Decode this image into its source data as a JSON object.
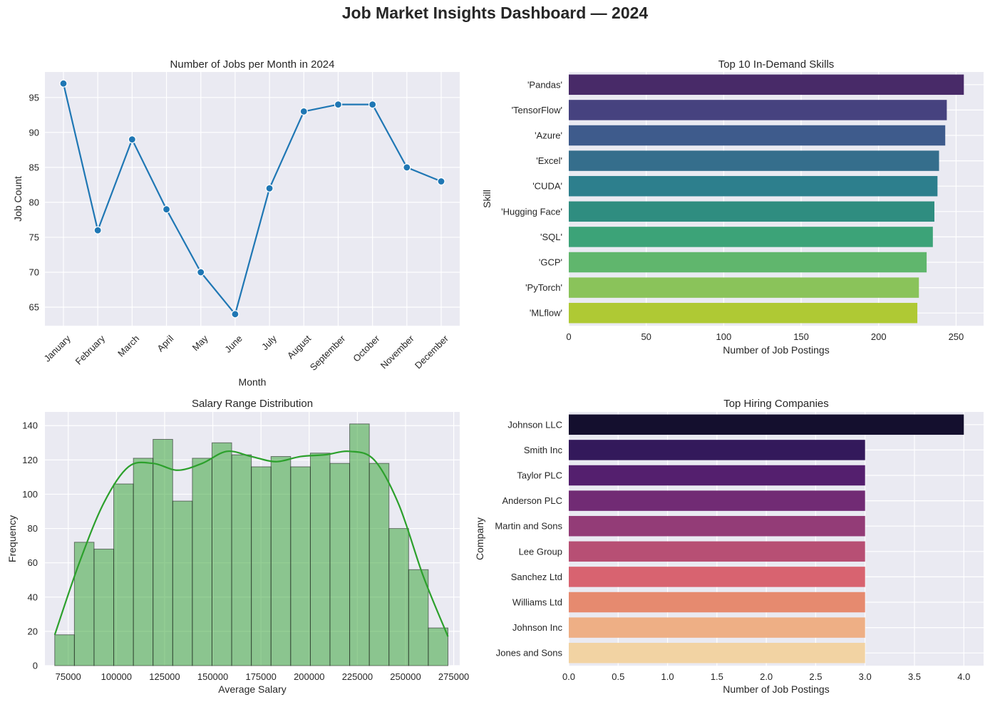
{
  "suptitle": "Job Market Insights Dashboard — 2024",
  "chart_data": [
    {
      "type": "line",
      "title": "Number of Jobs per Month in 2024",
      "xlabel": "Month",
      "ylabel": "Job Count",
      "categories": [
        "January",
        "February",
        "March",
        "April",
        "May",
        "June",
        "July",
        "August",
        "September",
        "October",
        "November",
        "December"
      ],
      "values": [
        97,
        76,
        89,
        79,
        70,
        64,
        82,
        93,
        94,
        94,
        85,
        83
      ],
      "ylim": [
        62.35,
        98.65
      ],
      "yticks": [
        65,
        70,
        75,
        80,
        85,
        90,
        95
      ],
      "color": "#1f77b4",
      "grid": true
    },
    {
      "type": "bar",
      "orientation": "horizontal",
      "title": "Top 10 In-Demand Skills",
      "xlabel": "Number of Job Postings",
      "ylabel": "Skill",
      "categories": [
        "'Pandas'",
        "'TensorFlow'",
        "'Azure'",
        "'Excel'",
        "'CUDA'",
        "'Hugging Face'",
        "'SQL'",
        "'GCP'",
        "'PyTorch'",
        "'MLflow'"
      ],
      "values": [
        255,
        244,
        243,
        239,
        238,
        236,
        235,
        231,
        226,
        225
      ],
      "colors": [
        "#482a68",
        "#46427f",
        "#3e5b8c",
        "#356e8c",
        "#2d7f8d",
        "#2f8d80",
        "#3ca378",
        "#60b66d",
        "#8ac35a",
        "#afc934"
      ],
      "xlim": [
        0,
        267.75
      ],
      "xticks": [
        0,
        50,
        100,
        150,
        200,
        250
      ],
      "grid": true
    },
    {
      "type": "histogram",
      "title": "Salary Range Distribution",
      "xlabel": "Average Salary",
      "ylabel": "Frequency",
      "bin_start": 68000,
      "bin_width": 10200,
      "values": [
        18,
        72,
        68,
        106,
        121,
        132,
        96,
        121,
        130,
        123,
        116,
        122,
        116,
        124,
        118,
        141,
        118,
        80,
        56,
        22
      ],
      "kde_y": [
        18,
        60,
        95,
        116,
        118,
        114,
        118,
        125,
        122,
        119,
        122,
        123,
        125,
        120,
        94,
        52,
        17
      ],
      "xlim": [
        62900,
        278100
      ],
      "ylim": [
        0,
        148
      ],
      "xticks": [
        75000,
        100000,
        125000,
        150000,
        175000,
        200000,
        225000,
        250000,
        275000
      ],
      "yticks": [
        0,
        20,
        40,
        60,
        80,
        100,
        120,
        140
      ],
      "bar_color": "#2ca02c",
      "grid": true
    },
    {
      "type": "bar",
      "orientation": "horizontal",
      "title": "Top Hiring Companies",
      "xlabel": "Number of Job Postings",
      "ylabel": "Company",
      "categories": [
        "Johnson LLC",
        "Smith Inc",
        "Taylor PLC",
        "Anderson PLC",
        "Martin and Sons",
        "Lee Group",
        "Sanchez Ltd",
        "Williams Ltd",
        "Johnson Inc",
        "Jones and Sons"
      ],
      "values": [
        4,
        3,
        3,
        3,
        3,
        3,
        3,
        3,
        3,
        3
      ],
      "colors": [
        "#140f2e",
        "#33195b",
        "#541f6e",
        "#712b74",
        "#933c77",
        "#b74f74",
        "#d86370",
        "#e68a6f",
        "#eeaf85",
        "#f2d3a3"
      ],
      "xlim": [
        0,
        4.2
      ],
      "xticks": [
        0.0,
        0.5,
        1.0,
        1.5,
        2.0,
        2.5,
        3.0,
        3.5,
        4.0
      ],
      "grid": true
    }
  ]
}
